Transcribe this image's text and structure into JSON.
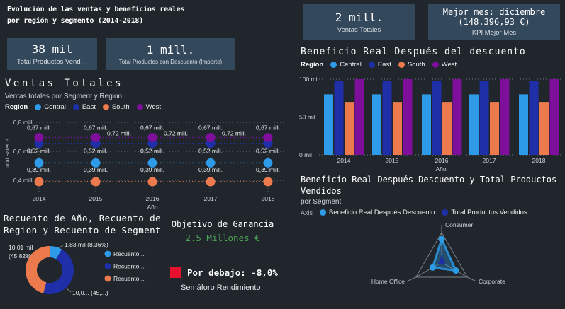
{
  "header": {
    "title_line1": "Evolución de las ventas y beneficios reales",
    "title_line2": "por región y segmento (2014-2018)"
  },
  "cards": {
    "vendidos": {
      "value": "38 mil",
      "label": "Total Productos Vend…"
    },
    "descuento": {
      "value": "1 mill.",
      "label": "Total Productos con Descuento (Importe)"
    },
    "ventas": {
      "value": "2 mill.",
      "label": "Ventas Totales"
    },
    "mejor_mes": {
      "value_line1": "Mejor mes: diciembre",
      "value_line2": "(148.396,93 €)",
      "label": "KPI Mejor Mes"
    }
  },
  "goal": {
    "title": "Objetivo de Ganancia",
    "value": "2.5 Millones €",
    "value_color": "#4da455",
    "status_text": "Por debajo: -8,0%",
    "status_color": "#e8112d",
    "status_label": "Semáforo Rendimiento"
  },
  "chart_data": [
    {
      "id": "ventas_totales",
      "type": "scatter",
      "title": "Ventas Totales",
      "subtitle": "Ventas totales  por Segment y Region",
      "legend_title": "Region",
      "legend_position": "top",
      "xlabel": "Año",
      "ylabel": "Total Sales 2",
      "x": [
        "2014",
        "2015",
        "2016",
        "2017",
        "2018"
      ],
      "yticks": [
        "0,8 mill.",
        "0,6 mill.",
        "0,4 mill."
      ],
      "ytick_values": [
        0.8,
        0.6,
        0.4
      ],
      "ylim": [
        0.35,
        0.85
      ],
      "grid": true,
      "series": [
        {
          "name": "Central",
          "color": "#2d9be8",
          "values": [
            0.52,
            0.52,
            0.52,
            0.52,
            0.52
          ],
          "labels": [
            "0,52 mill.",
            "0,52 mill.",
            "0,52 mill.",
            "0,52 mill.",
            "0,52 mill."
          ],
          "display_value": 0.52,
          "label_dx": 0,
          "label_dy": -14
        },
        {
          "name": "East",
          "color": "#1e2fa8",
          "values": [
            0.72,
            0.72,
            0.72,
            0.72,
            0.72
          ],
          "labels": [
            null,
            "0,72 mill.",
            "0,72 mill.",
            "0,72 mill.",
            null
          ],
          "display_value": 0.655,
          "label_dx": 16,
          "label_dy": -11
        },
        {
          "name": "South",
          "color": "#ec7a4d",
          "values": [
            0.39,
            0.39,
            0.39,
            0.39,
            0.39
          ],
          "labels": [
            "0,39 mill.",
            "0,39 mill.",
            "0,39 mill.",
            "0,39 mill.",
            "0,39 mill."
          ],
          "display_value": 0.39,
          "label_dx": 0,
          "label_dy": -14
        },
        {
          "name": "West",
          "color": "#7d0f9b",
          "values": [
            0.67,
            0.67,
            0.67,
            0.67,
            0.67
          ],
          "labels": [
            "0,67 mill.",
            "0,67 mill.",
            "0,67 mill.",
            "0,67 mill.",
            "0,67 mill."
          ],
          "display_value": 0.695,
          "label_dx": 0,
          "label_dy": -11
        }
      ]
    },
    {
      "id": "beneficio_bars",
      "type": "bar",
      "title": "Beneficio Real Después del descuento",
      "legend_title": "Region",
      "legend_position": "top",
      "xlabel": "Año",
      "categories": [
        "2014",
        "2015",
        "2016",
        "2017",
        "2018"
      ],
      "yticks": [
        "100 mil",
        "50 mil",
        "0 mil"
      ],
      "ytick_values": [
        100,
        50,
        0
      ],
      "ylim": [
        0,
        100
      ],
      "grid": true,
      "series": [
        {
          "name": "Central",
          "color": "#2d9be8",
          "values": [
            80,
            80,
            80,
            80,
            80
          ]
        },
        {
          "name": "East",
          "color": "#1e2fa8",
          "values": [
            98,
            98,
            98,
            98,
            98
          ]
        },
        {
          "name": "South",
          "color": "#ec7a4d",
          "values": [
            70,
            70,
            70,
            70,
            70
          ]
        },
        {
          "name": "West",
          "color": "#7d0f9b",
          "values": [
            100,
            100,
            100,
            100,
            100
          ]
        }
      ]
    },
    {
      "id": "recuento_donut",
      "type": "pie",
      "title": "Recuento de Año, Recuento de Region y Recuento de Segment",
      "slices": [
        {
          "value": 8.36,
          "color": "#2d9be8",
          "label": "1,83 mil (8,36%)",
          "legend": "Recuento ..."
        },
        {
          "value": 45.82,
          "color": "#1e2fa8",
          "label": "10,0... (45,...)",
          "legend": "Recuento ..."
        },
        {
          "value": 45.82,
          "color": "#ec7a4d",
          "label": "10,01 mil",
          "label2": "(45,82%)",
          "legend": "Recuento ..."
        }
      ]
    },
    {
      "id": "radar_beneficio",
      "type": "radar",
      "title": "Beneficio Real Después Descuento y Total Productos Vendidos",
      "subtitle": "por Segment",
      "legend_title": "Axis",
      "axes": [
        "Consumer",
        "Corporate",
        "Home Office"
      ],
      "series": [
        {
          "name": "Beneficio Real Después Descuento",
          "color": "#2d9be8",
          "values": [
            0.78,
            0.55,
            0.35
          ]
        },
        {
          "name": "Total Productos Vendidos",
          "color": "#1e2fa8",
          "values": [
            0.22,
            0.13,
            0.12
          ]
        }
      ]
    }
  ]
}
